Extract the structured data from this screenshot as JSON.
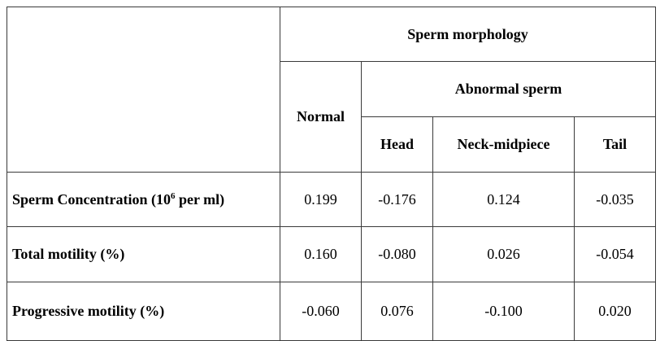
{
  "table": {
    "header": {
      "group_title": "Sperm morphology",
      "normal": "Normal",
      "abnormal_title": "Abnormal sperm",
      "head": "Head",
      "neck": "Neck-midpiece",
      "tail": "Tail"
    },
    "rows": [
      {
        "label_pre": "Sperm Concentration (10",
        "label_sup": "6",
        "label_post": " per ml)",
        "normal": "0.199",
        "head": "-0.176",
        "neck": "0.124",
        "tail": "-0.035"
      },
      {
        "label": "Total motility (%)",
        "normal": "0.160",
        "head": "-0.080",
        "neck": "0.026",
        "tail": "-0.054"
      },
      {
        "label": "Progressive motility (%)",
        "normal": "-0.060",
        "head": "0.076",
        "neck": "-0.100",
        "tail": "0.020"
      }
    ]
  }
}
